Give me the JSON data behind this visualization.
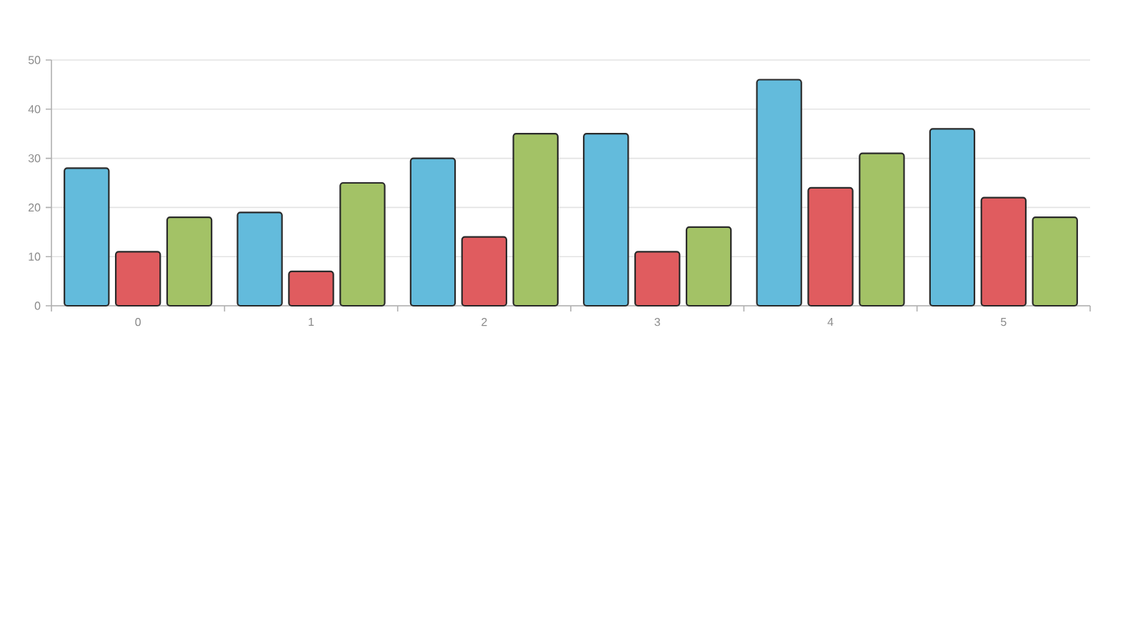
{
  "chart_data": {
    "type": "bar",
    "categories": [
      "0",
      "1",
      "2",
      "3",
      "4",
      "5"
    ],
    "series": [
      {
        "color": "#63bbdc",
        "values": [
          28,
          19,
          30,
          35,
          46,
          36
        ]
      },
      {
        "color": "#e05c5f",
        "values": [
          11,
          7,
          14,
          11,
          24,
          22
        ]
      },
      {
        "color": "#a3c266",
        "values": [
          18,
          25,
          35,
          16,
          31,
          18
        ]
      }
    ],
    "ylim": [
      0,
      50
    ],
    "yticks": [
      0,
      10,
      20,
      30,
      40,
      50
    ],
    "grid": "y"
  }
}
